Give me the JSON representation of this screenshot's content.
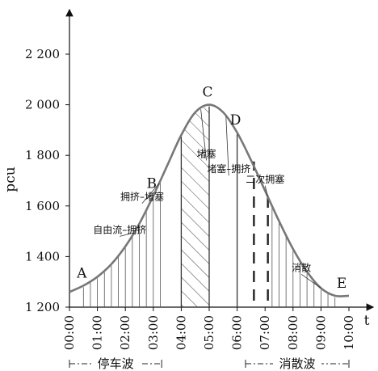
{
  "chart_data": {
    "type": "area",
    "title": "",
    "xlabel": "t",
    "ylabel": "pcu",
    "xlim": [
      0,
      10
    ],
    "ylim": [
      1200,
      2200
    ],
    "y_ticks": [
      {
        "value": 1200,
        "label": "1 200"
      },
      {
        "value": 1400,
        "label": "1 400"
      },
      {
        "value": 1600,
        "label": "1 600"
      },
      {
        "value": 1800,
        "label": "1 800"
      },
      {
        "value": 2000,
        "label": "2 000"
      },
      {
        "value": 2200,
        "label": "2 200"
      }
    ],
    "x_ticks": [
      {
        "value": 0,
        "label": "00:00"
      },
      {
        "value": 1,
        "label": "01:00"
      },
      {
        "value": 2,
        "label": "02:00"
      },
      {
        "value": 3,
        "label": "03:00"
      },
      {
        "value": 4,
        "label": "04:00"
      },
      {
        "value": 5,
        "label": "05:00"
      },
      {
        "value": 6,
        "label": "06:00"
      },
      {
        "value": 7,
        "label": "07:00"
      },
      {
        "value": 8,
        "label": "08:00"
      },
      {
        "value": 9,
        "label": "09:00"
      },
      {
        "value": 10,
        "label": "10:00"
      }
    ],
    "curve": {
      "x": [
        0,
        0.5,
        1,
        1.5,
        2,
        2.5,
        3,
        3.5,
        4,
        4.5,
        5,
        5.5,
        6,
        6.5,
        7,
        7.5,
        8,
        8.5,
        9,
        9.5,
        10
      ],
      "y": [
        1260,
        1285,
        1320,
        1370,
        1440,
        1530,
        1640,
        1760,
        1880,
        1970,
        2000,
        1970,
        1890,
        1780,
        1660,
        1540,
        1430,
        1340,
        1275,
        1245,
        1245
      ]
    },
    "points": [
      {
        "label": "A",
        "x": 0.5,
        "y": 1285
      },
      {
        "label": "B",
        "x": 3.0,
        "y": 1640
      },
      {
        "label": "C",
        "x": 5.0,
        "y": 2000
      },
      {
        "label": "D",
        "x": 6.0,
        "y": 1890
      },
      {
        "label": "E",
        "x": 9.8,
        "y": 1245
      }
    ],
    "annotations": [
      {
        "text": "自由流–拥挤",
        "x": 1.8,
        "y": 1480
      },
      {
        "text": "拥挤–堵塞",
        "x": 2.6,
        "y": 1610
      },
      {
        "text": "堵塞",
        "x": 4.9,
        "y": 1780
      },
      {
        "text": "堵塞–拥挤",
        "x": 5.7,
        "y": 1720
      },
      {
        "text": "二次拥塞",
        "x": 7.0,
        "y": 1680
      },
      {
        "text": "消散",
        "x": 8.3,
        "y": 1330
      }
    ],
    "hatched_region": {
      "x_start": 4.0,
      "x_end": 5.0
    },
    "secondary_congestion_lines_x": [
      6.6,
      7.1
    ],
    "phases": [
      {
        "label": "停车波",
        "x_start": 0,
        "x_end": 3.3
      },
      {
        "label": "消散波",
        "x_start": 6.3,
        "x_end": 10
      }
    ],
    "grid": false,
    "legend": "none"
  }
}
